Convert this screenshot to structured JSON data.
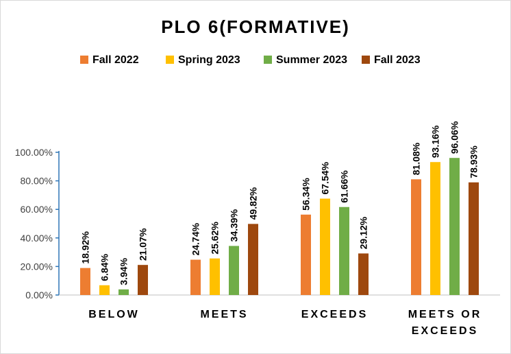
{
  "chart_data": {
    "type": "bar",
    "title": "PLO 6(FORMATIVE)",
    "xlabel": "",
    "ylabel": "",
    "categories": [
      [
        "BELOW"
      ],
      [
        "MEETS"
      ],
      [
        "EXCEEDS"
      ],
      [
        "MEETS OR",
        "EXCEEDS"
      ]
    ],
    "series": [
      {
        "name": "Fall 2022",
        "color": "#ED7D31",
        "values": [
          18.92,
          24.74,
          56.34,
          81.08
        ]
      },
      {
        "name": "Spring 2023",
        "color": "#FFC000",
        "values": [
          6.84,
          25.62,
          67.54,
          93.16
        ]
      },
      {
        "name": "Summer 2023",
        "color": "#70AD47",
        "values": [
          3.94,
          34.39,
          61.66,
          96.06
        ]
      },
      {
        "name": "Fall 2023",
        "color": "#9E480E",
        "values": [
          21.07,
          49.82,
          29.12,
          78.93
        ]
      }
    ],
    "data_labels": [
      [
        "18.92%",
        "24.74%",
        "56.34%",
        "81.08%"
      ],
      [
        "6.84%",
        "25.62%",
        "67.54%",
        "93.16%"
      ],
      [
        "3.94%",
        "34.39%",
        "61.66%",
        "96.06%"
      ],
      [
        "21.07%",
        "49.82%",
        "29.12%",
        "78.93%"
      ]
    ],
    "yticks": [
      0,
      20,
      40,
      60,
      80,
      100
    ],
    "ytick_labels": [
      "0.00%",
      "20.00%",
      "40.00%",
      "60.00%",
      "80.00%",
      "100.00%"
    ],
    "ylim": [
      0,
      100
    ],
    "grid": false,
    "legend_position": "top"
  }
}
